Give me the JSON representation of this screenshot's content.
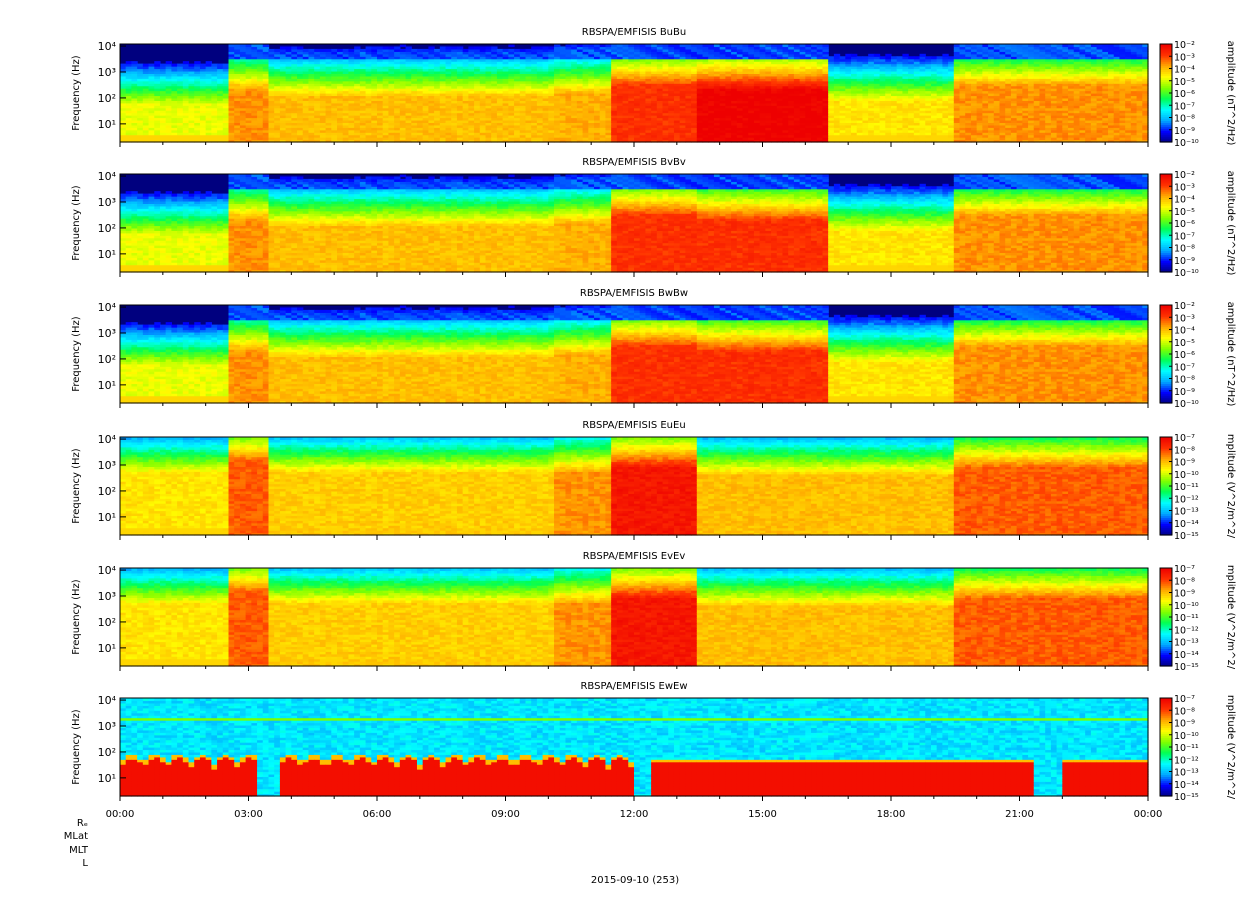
{
  "figure": {
    "footer_labels": [
      "Rₑ",
      "MLat",
      "MLT",
      "L"
    ],
    "date_label": "2015-09-10 (253)"
  },
  "chart_data": [
    {
      "type": "heatmap",
      "title": "RBSPA/EMFISIS  BuBu",
      "ylabel": "Frequency (Hz)",
      "colorbar_label": "amplitude (nT^2/Hz)",
      "ylim_hz": [
        2,
        12000
      ],
      "y_scale": "log",
      "y_ticks": [
        "10¹",
        "10²",
        "10³",
        "10⁴"
      ],
      "x_ticks": [],
      "colorbar_ticks": [
        "10⁻²",
        "10⁻³",
        "10⁻⁴",
        "10⁻⁵",
        "10⁻⁶",
        "10⁻⁷",
        "10⁻⁸",
        "10⁻⁹",
        "10⁻¹⁰"
      ],
      "colorbar_range": [
        1e-10,
        0.01
      ],
      "colormap": [
        "#00007f",
        "#0000ff",
        "#00aaff",
        "#00ffff",
        "#00ff55",
        "#7fff00",
        "#ffff00",
        "#ffaa00",
        "#ff3300",
        "#ee0000"
      ],
      "kind": "B",
      "segments": [
        {
          "t": 0.0,
          "base": 0.3,
          "lf": 60
        },
        {
          "t": 2.35,
          "base": 0.3,
          "lf": 60
        },
        {
          "t": 2.5,
          "base": 0.45,
          "lf": 200
        },
        {
          "t": 3.5,
          "base": 0.4,
          "lf": 120
        },
        {
          "t": 10.2,
          "base": 0.42,
          "lf": 150
        },
        {
          "t": 11.5,
          "base": 0.55,
          "lf": 300
        },
        {
          "t": 13.5,
          "base": 0.65,
          "lf": 200
        },
        {
          "t": 16.5,
          "base": 0.35,
          "lf": 80
        },
        {
          "t": 19.5,
          "base": 0.45,
          "lf": 300
        },
        {
          "t": 24.0,
          "base": 0.35,
          "lf": 200
        }
      ]
    },
    {
      "type": "heatmap",
      "title": "RBSPA/EMFISIS  BvBv",
      "ylabel": "Frequency (Hz)",
      "colorbar_label": "amplitude (nT^2/Hz)",
      "ylim_hz": [
        2,
        12000
      ],
      "y_scale": "log",
      "y_ticks": [
        "10¹",
        "10²",
        "10³",
        "10⁴"
      ],
      "x_ticks": [],
      "colorbar_ticks": [
        "10⁻²",
        "10⁻³",
        "10⁻⁴",
        "10⁻⁵",
        "10⁻⁶",
        "10⁻⁷",
        "10⁻⁸",
        "10⁻⁹",
        "10⁻¹⁰"
      ],
      "colorbar_range": [
        1e-10,
        0.01
      ],
      "colormap": [
        "#00007f",
        "#0000ff",
        "#00aaff",
        "#00ffff",
        "#00ff55",
        "#7fff00",
        "#ffff00",
        "#ffaa00",
        "#ff3300",
        "#ee0000"
      ],
      "kind": "B",
      "segments": [
        {
          "t": 0.0,
          "base": 0.3,
          "lf": 60
        },
        {
          "t": 2.5,
          "base": 0.45,
          "lf": 200
        },
        {
          "t": 3.5,
          "base": 0.4,
          "lf": 120
        },
        {
          "t": 10.2,
          "base": 0.42,
          "lf": 150
        },
        {
          "t": 11.5,
          "base": 0.55,
          "lf": 300
        },
        {
          "t": 13.5,
          "base": 0.55,
          "lf": 200
        },
        {
          "t": 16.5,
          "base": 0.35,
          "lf": 80
        },
        {
          "t": 19.5,
          "base": 0.45,
          "lf": 300
        },
        {
          "t": 24.0,
          "base": 0.35,
          "lf": 200
        }
      ]
    },
    {
      "type": "heatmap",
      "title": "RBSPA/EMFISIS  BwBw",
      "ylabel": "Frequency (Hz)",
      "colorbar_label": "amplitude (nT^2/Hz)",
      "ylim_hz": [
        2,
        12000
      ],
      "y_scale": "log",
      "y_ticks": [
        "10¹",
        "10²",
        "10³",
        "10⁴"
      ],
      "x_ticks": [],
      "colorbar_ticks": [
        "10⁻²",
        "10⁻³",
        "10⁻⁴",
        "10⁻⁵",
        "10⁻⁶",
        "10⁻⁷",
        "10⁻⁸",
        "10⁻⁹",
        "10⁻¹⁰"
      ],
      "colorbar_range": [
        1e-10,
        0.01
      ],
      "colormap": [
        "#00007f",
        "#0000ff",
        "#00aaff",
        "#00ffff",
        "#00ff55",
        "#7fff00",
        "#ffff00",
        "#ffaa00",
        "#ff3300",
        "#ee0000"
      ],
      "kind": "B",
      "segments": [
        {
          "t": 0.0,
          "base": 0.3,
          "lf": 60
        },
        {
          "t": 2.5,
          "base": 0.45,
          "lf": 200
        },
        {
          "t": 3.5,
          "base": 0.4,
          "lf": 120
        },
        {
          "t": 10.2,
          "base": 0.42,
          "lf": 150
        },
        {
          "t": 11.5,
          "base": 0.55,
          "lf": 300
        },
        {
          "t": 13.5,
          "base": 0.55,
          "lf": 200
        },
        {
          "t": 16.5,
          "base": 0.35,
          "lf": 80
        },
        {
          "t": 19.5,
          "base": 0.45,
          "lf": 300
        },
        {
          "t": 24.0,
          "base": 0.35,
          "lf": 200
        }
      ]
    },
    {
      "type": "heatmap",
      "title": "RBSPA/EMFISIS  EuEu",
      "ylabel": "Frequency (Hz)",
      "colorbar_label": "mplitude (V^2/m^2/",
      "ylim_hz": [
        2,
        12000
      ],
      "y_scale": "log",
      "y_ticks": [
        "10¹",
        "10²",
        "10³",
        "10⁴"
      ],
      "x_ticks": [],
      "colorbar_ticks": [
        "10⁻⁷",
        "10⁻⁸",
        "10⁻⁹",
        "10⁻¹⁰",
        "10⁻¹¹",
        "10⁻¹²",
        "10⁻¹³",
        "10⁻¹⁴",
        "10⁻¹⁵"
      ],
      "colorbar_range": [
        1e-15,
        1e-07
      ],
      "colormap": [
        "#00007f",
        "#0000ff",
        "#00aaff",
        "#00ffff",
        "#00ff55",
        "#7fff00",
        "#ffff00",
        "#ffaa00",
        "#ff3300",
        "#ee0000"
      ],
      "kind": "E",
      "segments": [
        {
          "t": 0.0,
          "base": 0.35,
          "lf": 500
        },
        {
          "t": 2.5,
          "base": 0.5,
          "lf": 1500
        },
        {
          "t": 3.5,
          "base": 0.38,
          "lf": 500
        },
        {
          "t": 10.2,
          "base": 0.45,
          "lf": 500
        },
        {
          "t": 11.5,
          "base": 0.6,
          "lf": 800
        },
        {
          "t": 13.5,
          "base": 0.4,
          "lf": 400
        },
        {
          "t": 19.5,
          "base": 0.5,
          "lf": 800
        },
        {
          "t": 24.0,
          "base": 0.4,
          "lf": 500
        }
      ]
    },
    {
      "type": "heatmap",
      "title": "RBSPA/EMFISIS  EvEv",
      "ylabel": "Frequency (Hz)",
      "colorbar_label": "mplitude (V^2/m^2/",
      "ylim_hz": [
        2,
        12000
      ],
      "y_scale": "log",
      "y_ticks": [
        "10¹",
        "10²",
        "10³",
        "10⁴"
      ],
      "x_ticks": [],
      "colorbar_ticks": [
        "10⁻⁷",
        "10⁻⁸",
        "10⁻⁹",
        "10⁻¹⁰",
        "10⁻¹¹",
        "10⁻¹²",
        "10⁻¹³",
        "10⁻¹⁴",
        "10⁻¹⁵"
      ],
      "colorbar_range": [
        1e-15,
        1e-07
      ],
      "colormap": [
        "#00007f",
        "#0000ff",
        "#00aaff",
        "#00ffff",
        "#00ff55",
        "#7fff00",
        "#ffff00",
        "#ffaa00",
        "#ff3300",
        "#ee0000"
      ],
      "kind": "E",
      "segments": [
        {
          "t": 0.0,
          "base": 0.35,
          "lf": 500
        },
        {
          "t": 2.5,
          "base": 0.5,
          "lf": 1500
        },
        {
          "t": 3.5,
          "base": 0.38,
          "lf": 500
        },
        {
          "t": 10.2,
          "base": 0.45,
          "lf": 500
        },
        {
          "t": 11.5,
          "base": 0.6,
          "lf": 800
        },
        {
          "t": 13.5,
          "base": 0.4,
          "lf": 400
        },
        {
          "t": 19.5,
          "base": 0.5,
          "lf": 800
        },
        {
          "t": 24.0,
          "base": 0.4,
          "lf": 500
        }
      ]
    },
    {
      "type": "heatmap",
      "title": "RBSPA/EMFISIS  EwEw",
      "ylabel": "Frequency (Hz)",
      "colorbar_label": "mplitude (V^2/m^2/",
      "ylim_hz": [
        2,
        12000
      ],
      "y_scale": "log",
      "y_ticks": [
        "10¹",
        "10²",
        "10³",
        "10⁴"
      ],
      "x_ticks": [
        "00:00",
        "03:00",
        "06:00",
        "09:00",
        "12:00",
        "15:00",
        "18:00",
        "21:00",
        "00:00"
      ],
      "colorbar_ticks": [
        "10⁻⁷",
        "10⁻⁸",
        "10⁻⁹",
        "10⁻¹⁰",
        "10⁻¹¹",
        "10⁻¹²",
        "10⁻¹³",
        "10⁻¹⁴",
        "10⁻¹⁵"
      ],
      "colorbar_range": [
        1e-15,
        1e-07
      ],
      "colormap": [
        "#00007f",
        "#0000ff",
        "#00aaff",
        "#00ffff",
        "#00ff55",
        "#7fff00",
        "#ffff00",
        "#ffaa00",
        "#ff3300",
        "#ee0000"
      ],
      "kind": "Ew",
      "red_bands": [
        {
          "t0": 0.0,
          "t1": 3.2,
          "top_hz": 60,
          "scallop_period_h": 0.55
        },
        {
          "t0": 3.7,
          "t1": 12.0,
          "top_hz": 60,
          "scallop_period_h": 0.55
        },
        {
          "t0": 12.4,
          "t1": 21.4,
          "top_hz": 40,
          "scallop_period_h": 0
        },
        {
          "t0": 22.0,
          "t1": 24.0,
          "top_hz": 40,
          "scallop_period_h": 0
        }
      ]
    }
  ]
}
